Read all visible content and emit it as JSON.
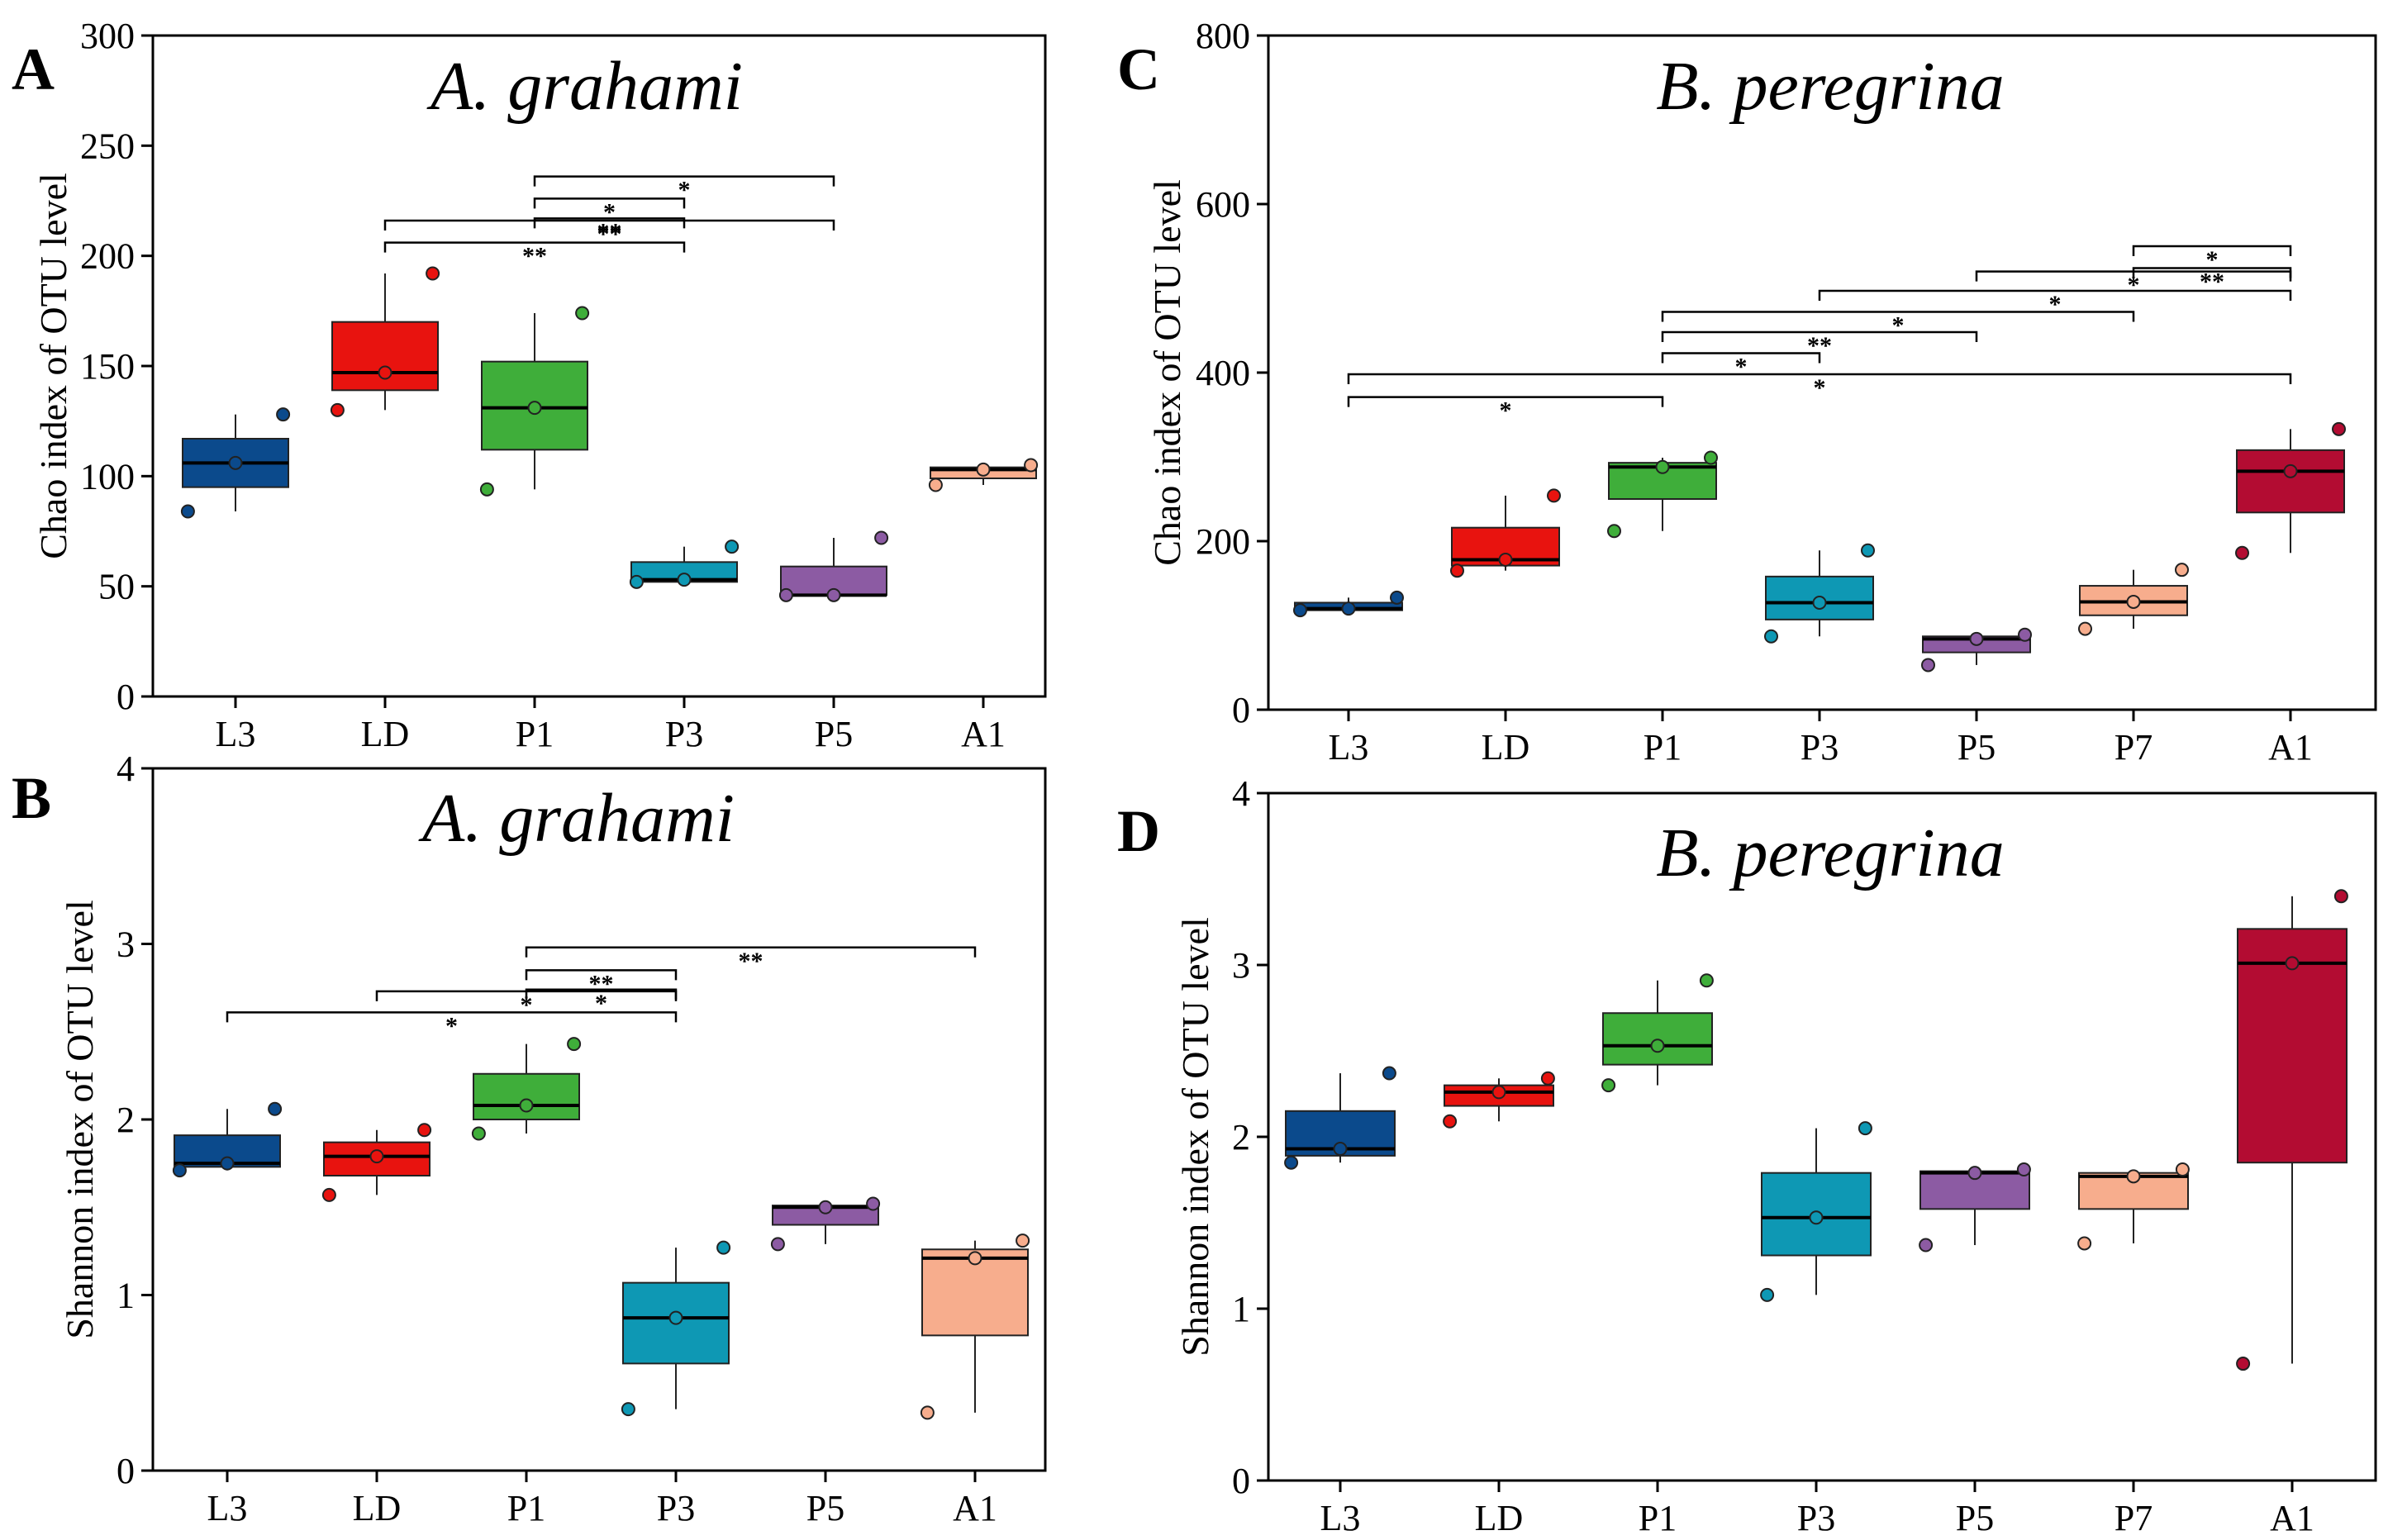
{
  "chart_data": [
    {
      "panel": "A",
      "type": "box",
      "title": "A. grahami",
      "xlabel": "",
      "ylabel": "Chao index of OTU level",
      "ylim": [
        0,
        300
      ],
      "yticks": [
        0,
        50,
        100,
        150,
        200,
        250,
        300
      ],
      "categories": [
        "L3",
        "LD",
        "P1",
        "P3",
        "P5",
        "A1"
      ],
      "colors": [
        "#0b4a8c",
        "#e8130f",
        "#3fae3a",
        "#0e98b4",
        "#8c5ba3",
        "#f7ad8d"
      ],
      "boxes": [
        {
          "min": 84,
          "q1": 95,
          "median": 106,
          "q3": 117,
          "max": 128,
          "points": [
            84,
            106,
            128
          ]
        },
        {
          "min": 130,
          "q1": 139,
          "median": 147,
          "q3": 170,
          "max": 192,
          "points": [
            130,
            147,
            192
          ]
        },
        {
          "min": 94,
          "q1": 112,
          "median": 131,
          "q3": 152,
          "max": 174,
          "points": [
            94,
            131,
            174
          ]
        },
        {
          "min": 52,
          "q1": 52,
          "median": 53,
          "q3": 61,
          "max": 68,
          "points": [
            52,
            53,
            68
          ]
        },
        {
          "min": 46,
          "q1": 46,
          "median": 46,
          "q3": 59,
          "max": 72,
          "points": [
            46,
            46,
            72
          ]
        },
        {
          "min": 96,
          "q1": 99,
          "median": 103,
          "q3": 104,
          "max": 105,
          "points": [
            96,
            103,
            105
          ]
        }
      ],
      "significance": [
        {
          "from": "P1",
          "to": "P5",
          "label": "*",
          "y": 236
        },
        {
          "from": "P1",
          "to": "P3",
          "label": "*",
          "y": 226
        },
        {
          "from": "P1",
          "to": "P3",
          "label": "**",
          "y": 217
        },
        {
          "from": "LD",
          "to": "P5",
          "label": "**",
          "y": 216
        },
        {
          "from": "LD",
          "to": "P3",
          "label": "**",
          "y": 206
        }
      ]
    },
    {
      "panel": "B",
      "type": "box",
      "title": "A. grahami",
      "xlabel": "",
      "ylabel": "Shannon index of OTU level",
      "ylim": [
        0,
        4
      ],
      "yticks": [
        0,
        1,
        2,
        3,
        4
      ],
      "categories": [
        "L3",
        "LD",
        "P1",
        "P3",
        "P5",
        "A1"
      ],
      "colors": [
        "#0b4a8c",
        "#e8130f",
        "#3fae3a",
        "#0e98b4",
        "#8c5ba3",
        "#f7ad8d"
      ],
      "boxes": [
        {
          "min": 1.71,
          "q1": 1.73,
          "median": 1.75,
          "q3": 1.91,
          "max": 2.06,
          "points": [
            1.71,
            1.75,
            2.06
          ]
        },
        {
          "min": 1.57,
          "q1": 1.68,
          "median": 1.79,
          "q3": 1.87,
          "max": 1.94,
          "points": [
            1.57,
            1.79,
            1.94
          ]
        },
        {
          "min": 1.92,
          "q1": 2.0,
          "median": 2.08,
          "q3": 2.26,
          "max": 2.43,
          "points": [
            1.92,
            2.08,
            2.43
          ]
        },
        {
          "min": 0.35,
          "q1": 0.61,
          "median": 0.87,
          "q3": 1.07,
          "max": 1.27,
          "points": [
            0.35,
            0.87,
            1.27
          ]
        },
        {
          "min": 1.29,
          "q1": 1.4,
          "median": 1.5,
          "q3": 1.51,
          "max": 1.52,
          "points": [
            1.29,
            1.5,
            1.52
          ]
        },
        {
          "min": 0.33,
          "q1": 0.77,
          "median": 1.21,
          "q3": 1.26,
          "max": 1.31,
          "points": [
            0.33,
            1.21,
            1.31
          ]
        }
      ],
      "significance": [
        {
          "from": "P1",
          "to": "A1",
          "label": "**",
          "y": 2.98
        },
        {
          "from": "P1",
          "to": "P3",
          "label": "**",
          "y": 2.85
        },
        {
          "from": "P1",
          "to": "P3",
          "label": "*",
          "y": 2.74
        },
        {
          "from": "LD",
          "to": "P3",
          "label": "*",
          "y": 2.73
        },
        {
          "from": "L3",
          "to": "P3",
          "label": "*",
          "y": 2.61
        }
      ]
    },
    {
      "panel": "C",
      "type": "box",
      "title": "B. peregrina",
      "xlabel": "",
      "ylabel": "Chao index of OTU level",
      "ylim": [
        0,
        800
      ],
      "yticks": [
        0,
        200,
        400,
        600,
        800
      ],
      "categories": [
        "L3",
        "LD",
        "P1",
        "P3",
        "P5",
        "P7",
        "A1"
      ],
      "colors": [
        "#0b4a8c",
        "#e8130f",
        "#3fae3a",
        "#0e98b4",
        "#8c5ba3",
        "#f7ad8d",
        "#b30c32"
      ],
      "boxes": [
        {
          "min": 118,
          "q1": 118,
          "median": 120,
          "q3": 127,
          "max": 133,
          "points": [
            118,
            120,
            133
          ]
        },
        {
          "min": 165,
          "q1": 171,
          "median": 178,
          "q3": 216,
          "max": 254,
          "points": [
            165,
            178,
            254
          ]
        },
        {
          "min": 212,
          "q1": 250,
          "median": 288,
          "q3": 293,
          "max": 299,
          "points": [
            212,
            288,
            299
          ]
        },
        {
          "min": 87,
          "q1": 107,
          "median": 127,
          "q3": 158,
          "max": 189,
          "points": [
            87,
            127,
            189
          ]
        },
        {
          "min": 53,
          "q1": 68,
          "median": 84,
          "q3": 87,
          "max": 89,
          "points": [
            53,
            84,
            89
          ]
        },
        {
          "min": 96,
          "q1": 112,
          "median": 128,
          "q3": 147,
          "max": 166,
          "points": [
            96,
            128,
            166
          ]
        },
        {
          "min": 186,
          "q1": 234,
          "median": 283,
          "q3": 308,
          "max": 333,
          "points": [
            186,
            283,
            333
          ]
        }
      ],
      "significance": [
        {
          "from": "P7",
          "to": "A1",
          "label": "*",
          "y": 550
        },
        {
          "from": "P7",
          "to": "A1",
          "label": "**",
          "y": 524
        },
        {
          "from": "P5",
          "to": "A1",
          "label": "*",
          "y": 520
        },
        {
          "from": "P3",
          "to": "A1",
          "label": "*",
          "y": 497
        },
        {
          "from": "P1",
          "to": "P7",
          "label": "*",
          "y": 472
        },
        {
          "from": "P1",
          "to": "P5",
          "label": "**",
          "y": 448
        },
        {
          "from": "P1",
          "to": "P3",
          "label": "*",
          "y": 423
        },
        {
          "from": "L3",
          "to": "A1",
          "label": "*",
          "y": 398
        },
        {
          "from": "L3",
          "to": "P1",
          "label": "*",
          "y": 371
        }
      ]
    },
    {
      "panel": "D",
      "type": "box",
      "title": "B. peregrina",
      "xlabel": "",
      "ylabel": "Shannon index of OTU level",
      "ylim": [
        0,
        4
      ],
      "yticks": [
        0,
        1,
        2,
        3,
        4
      ],
      "categories": [
        "L3",
        "LD",
        "P1",
        "P3",
        "P5",
        "P7",
        "A1"
      ],
      "colors": [
        "#0b4a8c",
        "#e8130f",
        "#3fae3a",
        "#0e98b4",
        "#8c5ba3",
        "#f7ad8d",
        "#b30c32"
      ],
      "boxes": [
        {
          "min": 1.85,
          "q1": 1.89,
          "median": 1.93,
          "q3": 2.15,
          "max": 2.37,
          "points": [
            1.85,
            1.93,
            2.37
          ]
        },
        {
          "min": 2.09,
          "q1": 2.18,
          "median": 2.26,
          "q3": 2.3,
          "max": 2.34,
          "points": [
            2.09,
            2.26,
            2.34
          ]
        },
        {
          "min": 2.3,
          "q1": 2.42,
          "median": 2.53,
          "q3": 2.72,
          "max": 2.91,
          "points": [
            2.3,
            2.53,
            2.91
          ]
        },
        {
          "min": 1.08,
          "q1": 1.31,
          "median": 1.53,
          "q3": 1.79,
          "max": 2.05,
          "points": [
            1.08,
            1.53,
            2.05
          ]
        },
        {
          "min": 1.37,
          "q1": 1.58,
          "median": 1.79,
          "q3": 1.8,
          "max": 1.81,
          "points": [
            1.37,
            1.79,
            1.81
          ]
        },
        {
          "min": 1.38,
          "q1": 1.58,
          "median": 1.77,
          "q3": 1.79,
          "max": 1.81,
          "points": [
            1.38,
            1.77,
            1.81
          ]
        },
        {
          "min": 0.68,
          "q1": 1.85,
          "median": 3.01,
          "q3": 3.21,
          "max": 3.4,
          "points": [
            0.68,
            3.01,
            3.4
          ]
        }
      ],
      "significance": []
    }
  ]
}
